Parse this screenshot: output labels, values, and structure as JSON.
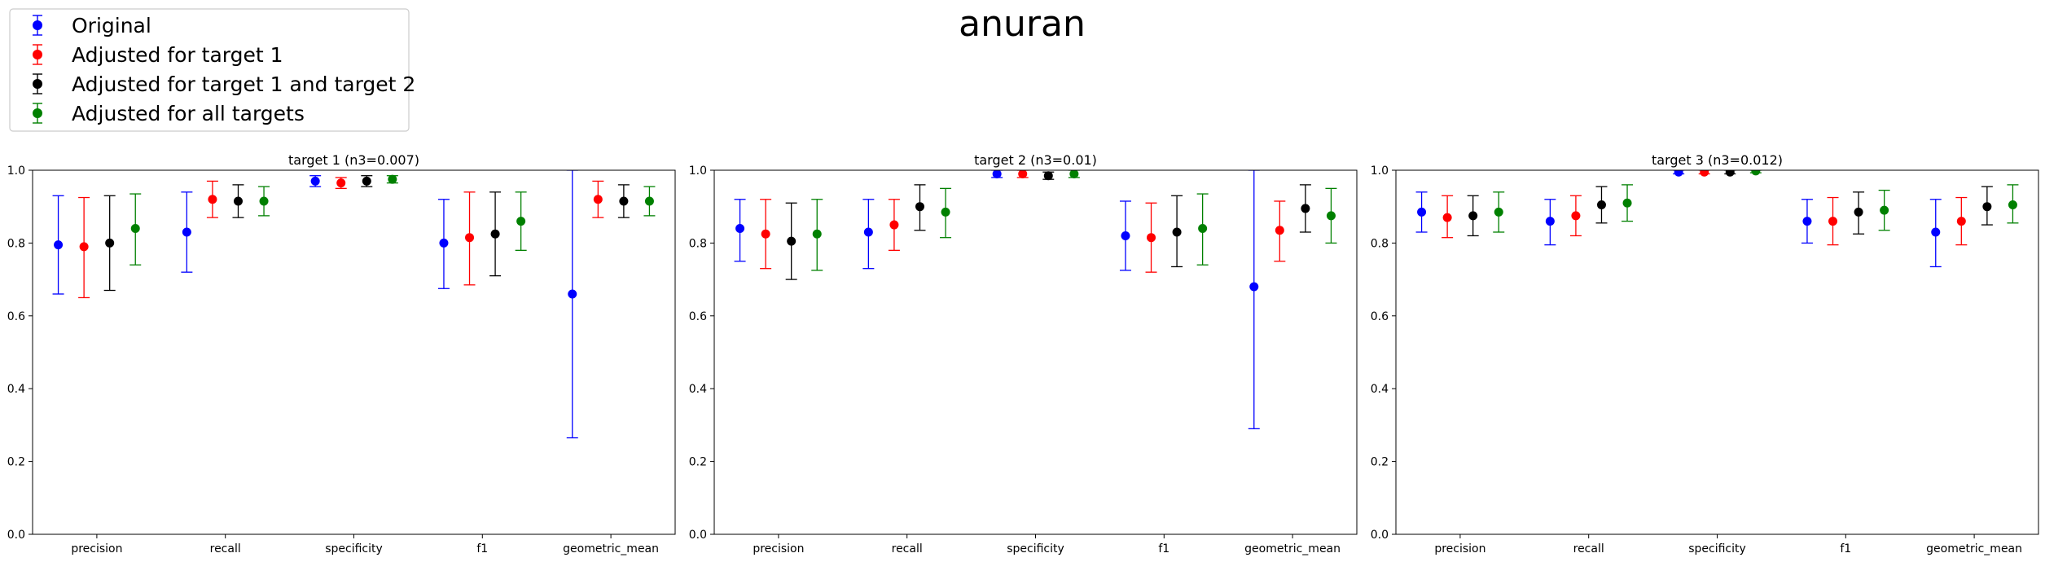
{
  "figure_title": "anuran",
  "legend_entries": [
    {
      "label": "Original",
      "color": "#0000ff"
    },
    {
      "label": "Adjusted for target 1",
      "color": "#ff0000"
    },
    {
      "label": "Adjusted for target 1 and target 2",
      "color": "#000000"
    },
    {
      "label": "Adjusted for all targets",
      "color": "#008000"
    }
  ],
  "chart_data": [
    {
      "type": "errorbar",
      "title": "target 1 (n3=0.007)",
      "categories": [
        "precision",
        "recall",
        "specificity",
        "f1",
        "geometric_mean"
      ],
      "ylim": [
        0.0,
        1.0
      ],
      "yticks": [
        "0.0",
        "0.2",
        "0.4",
        "0.6",
        "0.8",
        "1.0"
      ],
      "series": [
        {
          "name": "Original",
          "color": "#0000ff",
          "values": [
            0.795,
            0.83,
            0.97,
            0.8,
            0.66
          ],
          "lower": [
            0.66,
            0.72,
            0.955,
            0.675,
            0.265
          ],
          "upper": [
            0.93,
            0.94,
            0.985,
            0.92,
            1.0
          ]
        },
        {
          "name": "Adjusted for target 1",
          "color": "#ff0000",
          "values": [
            0.79,
            0.92,
            0.965,
            0.815,
            0.92
          ],
          "lower": [
            0.65,
            0.87,
            0.95,
            0.685,
            0.87
          ],
          "upper": [
            0.925,
            0.97,
            0.98,
            0.94,
            0.97
          ]
        },
        {
          "name": "Adjusted for target 1 and target 2",
          "color": "#000000",
          "values": [
            0.8,
            0.915,
            0.97,
            0.825,
            0.915
          ],
          "lower": [
            0.67,
            0.87,
            0.955,
            0.71,
            0.87
          ],
          "upper": [
            0.93,
            0.96,
            0.985,
            0.94,
            0.96
          ]
        },
        {
          "name": "Adjusted for all targets",
          "color": "#008000",
          "values": [
            0.84,
            0.915,
            0.975,
            0.86,
            0.915
          ],
          "lower": [
            0.74,
            0.875,
            0.965,
            0.78,
            0.875
          ],
          "upper": [
            0.935,
            0.955,
            0.985,
            0.94,
            0.955
          ]
        }
      ]
    },
    {
      "type": "errorbar",
      "title": "target 2 (n3=0.01)",
      "categories": [
        "precision",
        "recall",
        "specificity",
        "f1",
        "geometric_mean"
      ],
      "ylim": [
        0.0,
        1.0
      ],
      "yticks": [
        "0.0",
        "0.2",
        "0.4",
        "0.6",
        "0.8",
        "1.0"
      ],
      "series": [
        {
          "name": "Original",
          "color": "#0000ff",
          "values": [
            0.84,
            0.83,
            0.99,
            0.82,
            0.68
          ],
          "lower": [
            0.75,
            0.73,
            0.98,
            0.725,
            0.29
          ],
          "upper": [
            0.92,
            0.92,
            1.0,
            0.915,
            1.0
          ]
        },
        {
          "name": "Adjusted for target 1",
          "color": "#ff0000",
          "values": [
            0.825,
            0.85,
            0.99,
            0.815,
            0.835
          ],
          "lower": [
            0.73,
            0.78,
            0.98,
            0.72,
            0.75
          ],
          "upper": [
            0.92,
            0.92,
            1.0,
            0.91,
            0.915
          ]
        },
        {
          "name": "Adjusted for target 1 and target 2",
          "color": "#000000",
          "values": [
            0.805,
            0.9,
            0.985,
            0.83,
            0.895
          ],
          "lower": [
            0.7,
            0.835,
            0.975,
            0.735,
            0.83
          ],
          "upper": [
            0.91,
            0.96,
            0.995,
            0.93,
            0.96
          ]
        },
        {
          "name": "Adjusted for all targets",
          "color": "#008000",
          "values": [
            0.825,
            0.885,
            0.99,
            0.84,
            0.875
          ],
          "lower": [
            0.725,
            0.815,
            0.98,
            0.74,
            0.8
          ],
          "upper": [
            0.92,
            0.95,
            1.0,
            0.935,
            0.95
          ]
        }
      ]
    },
    {
      "type": "errorbar",
      "title": "target 3 (n3=0.012)",
      "categories": [
        "precision",
        "recall",
        "specificity",
        "f1",
        "geometric_mean"
      ],
      "ylim": [
        0.0,
        1.0
      ],
      "yticks": [
        "0.0",
        "0.2",
        "0.4",
        "0.6",
        "0.8",
        "1.0"
      ],
      "series": [
        {
          "name": "Original",
          "color": "#0000ff",
          "values": [
            0.885,
            0.86,
            0.995,
            0.86,
            0.83
          ],
          "lower": [
            0.83,
            0.795,
            0.99,
            0.8,
            0.735
          ],
          "upper": [
            0.94,
            0.92,
            1.0,
            0.92,
            0.92
          ]
        },
        {
          "name": "Adjusted for target 1",
          "color": "#ff0000",
          "values": [
            0.87,
            0.875,
            0.995,
            0.86,
            0.86
          ],
          "lower": [
            0.815,
            0.82,
            0.99,
            0.795,
            0.795
          ],
          "upper": [
            0.93,
            0.93,
            1.0,
            0.925,
            0.925
          ]
        },
        {
          "name": "Adjusted for target 1 and target 2",
          "color": "#000000",
          "values": [
            0.875,
            0.905,
            0.995,
            0.885,
            0.9
          ],
          "lower": [
            0.82,
            0.855,
            0.99,
            0.825,
            0.85
          ],
          "upper": [
            0.93,
            0.955,
            1.0,
            0.94,
            0.955
          ]
        },
        {
          "name": "Adjusted for all targets",
          "color": "#008000",
          "values": [
            0.885,
            0.91,
            0.998,
            0.89,
            0.905
          ],
          "lower": [
            0.83,
            0.86,
            0.993,
            0.835,
            0.855
          ],
          "upper": [
            0.94,
            0.96,
            1.0,
            0.945,
            0.96
          ]
        }
      ]
    }
  ]
}
